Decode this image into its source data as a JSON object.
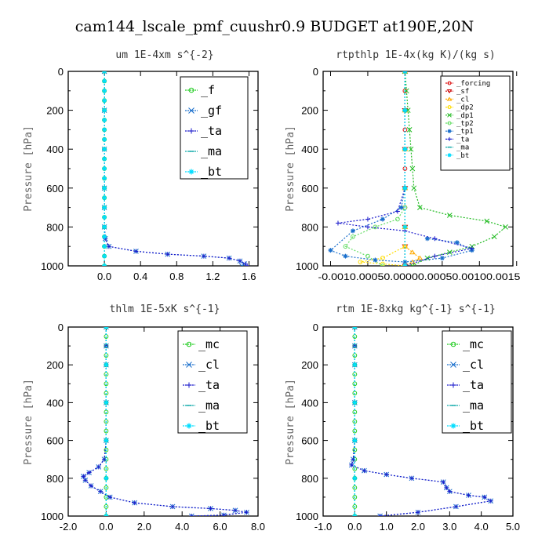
{
  "figure_title": "cam144_lscale_pmf_cuushr0.9  BUDGET at190E,20N",
  "chart_data": [
    {
      "type": "line",
      "title": "um   1E-4xm s^{-2}",
      "ylabel": "Pressure [hPa]",
      "xlabel": "",
      "xlim": [
        -0.4,
        1.7
      ],
      "ylim": [
        1000,
        0
      ],
      "xticks": [
        0.0,
        0.4,
        0.8,
        1.2,
        1.6
      ],
      "xtick_labels": [
        "0.0",
        "0.4",
        "0.8",
        "1.2",
        "1.6"
      ],
      "yticks": [
        0,
        200,
        400,
        600,
        800,
        1000
      ],
      "ytick_labels": [
        "0",
        "200",
        "400",
        "600",
        "800",
        "1000"
      ],
      "legend": "top-right",
      "series": [
        {
          "name": "_f",
          "color": "#22cc22",
          "marker": "o",
          "x": [
            0,
            0,
            0,
            0,
            0,
            0,
            0,
            0,
            0,
            0,
            0,
            0,
            0,
            0,
            0,
            0,
            0,
            0,
            0,
            0,
            0
          ],
          "y": [
            0,
            50,
            100,
            150,
            200,
            250,
            300,
            350,
            400,
            450,
            500,
            550,
            600,
            650,
            700,
            750,
            800,
            850,
            900,
            950,
            1000
          ]
        },
        {
          "name": "_gf",
          "color": "#1a6fcc",
          "marker": "x",
          "x": [
            0,
            0,
            0,
            0,
            0,
            0,
            0.01,
            0.05,
            0.35,
            0.7,
            1.1,
            1.38,
            1.5,
            1.55,
            1.52
          ],
          "y": [
            0,
            200,
            400,
            600,
            700,
            800,
            860,
            900,
            925,
            940,
            950,
            960,
            975,
            990,
            1000
          ]
        },
        {
          "name": "_ta",
          "color": "#1a1acc",
          "marker": "+",
          "x": [
            0,
            0,
            0,
            0,
            0,
            0,
            0.01,
            0.05,
            0.35,
            0.7,
            1.1,
            1.38,
            1.5,
            1.56,
            1.58
          ],
          "y": [
            0,
            200,
            400,
            600,
            700,
            800,
            860,
            900,
            925,
            940,
            950,
            960,
            975,
            990,
            1000
          ]
        },
        {
          "name": "_ma",
          "color": "#11aaaa",
          "marker": "-",
          "x": [
            0,
            0,
            0,
            0,
            0,
            0,
            0
          ],
          "y": [
            0,
            200,
            400,
            600,
            800,
            900,
            1000
          ]
        },
        {
          "name": "_bt",
          "color": "#00ddff",
          "marker": "*",
          "x": [
            0,
            0,
            0,
            0,
            0,
            0,
            0,
            0,
            0,
            0,
            0,
            0,
            0,
            0,
            0,
            0,
            0,
            0,
            0,
            0,
            0
          ],
          "y": [
            0,
            50,
            100,
            150,
            200,
            250,
            300,
            350,
            400,
            450,
            500,
            550,
            600,
            650,
            700,
            750,
            800,
            850,
            900,
            950,
            1000
          ]
        }
      ]
    },
    {
      "type": "line",
      "title": "rtpthlp   1E-4x(kg K)/(kg s)",
      "ylabel": "Pressure [hPa]",
      "xlabel": "",
      "xlim": [
        -0.0011,
        0.00145
      ],
      "ylim": [
        1000,
        0
      ],
      "xticks": [
        -0.001,
        -0.0005,
        0.0,
        0.0005,
        0.001,
        0.0015
      ],
      "xtick_labels": [
        "-0.001",
        "-0.0005",
        "0.0000",
        "0.0005",
        "0.001",
        "0.0015"
      ],
      "xtick_label_combined": "-0.0010.00050.00000.00050.00100.0015",
      "yticks": [
        0,
        200,
        400,
        600,
        800,
        1000
      ],
      "ytick_labels": [
        "0",
        "200",
        "400",
        "600",
        "800",
        "1000"
      ],
      "legend": "top-right",
      "series": [
        {
          "name": "_forcing",
          "color": "#dd1111",
          "marker": "o",
          "x": [
            0,
            0,
            0,
            0,
            0,
            0,
            0,
            0,
            0,
            0,
            0
          ],
          "y": [
            0,
            100,
            200,
            300,
            400,
            500,
            600,
            700,
            800,
            900,
            1000
          ]
        },
        {
          "name": "_sf",
          "color": "#cc0000",
          "marker": "v",
          "x": [
            0,
            0,
            0,
            0,
            0,
            0,
            0
          ],
          "y": [
            0,
            200,
            400,
            600,
            800,
            900,
            1000
          ]
        },
        {
          "name": "_cl",
          "color": "#ffaa00",
          "marker": "^",
          "x": [
            0,
            0,
            0,
            0,
            0,
            0,
            0.0001,
            0.0002,
            0.0001,
            0
          ],
          "y": [
            0,
            200,
            400,
            600,
            800,
            900,
            930,
            960,
            980,
            1000
          ]
        },
        {
          "name": "_dp2",
          "color": "#ffdd00",
          "marker": "o",
          "x": [
            0,
            0,
            0,
            0,
            0,
            0,
            -0.0003,
            -0.0006,
            -0.0003,
            0
          ],
          "y": [
            0,
            200,
            400,
            600,
            800,
            900,
            960,
            980,
            990,
            1000
          ]
        },
        {
          "name": "_dp1",
          "color": "#22bb22",
          "marker": "x",
          "x": [
            0,
            2e-05,
            4e-05,
            6e-05,
            8e-05,
            0.0001,
            0.00012,
            0.0002,
            0.0006,
            0.0011,
            0.00135,
            0.0012,
            0.0009,
            0.0006,
            0.0003,
            0.0001
          ],
          "y": [
            0,
            100,
            200,
            300,
            400,
            500,
            600,
            700,
            740,
            770,
            800,
            850,
            900,
            930,
            960,
            1000
          ]
        },
        {
          "name": "_tp2",
          "color": "#66dd66",
          "marker": "o",
          "x": [
            0,
            0,
            0,
            0,
            0,
            -0.0001,
            -0.0004,
            -0.0007,
            -0.0008,
            -0.0005,
            -0.0003
          ],
          "y": [
            0,
            200,
            400,
            600,
            700,
            760,
            800,
            850,
            900,
            950,
            1000
          ]
        },
        {
          "name": "_tp1",
          "color": "#1a6fcc",
          "marker": "*",
          "x": [
            0,
            0,
            0,
            0,
            -5e-05,
            -0.0003,
            -0.0007,
            -0.001,
            -0.0008,
            -0.0004,
            0,
            0.0005,
            0.0009,
            0.0007,
            0.0003
          ],
          "y": [
            0,
            200,
            400,
            600,
            700,
            760,
            820,
            920,
            950,
            970,
            980,
            960,
            920,
            880,
            860
          ]
        },
        {
          "name": "_ta",
          "color": "#1a1acc",
          "marker": "+",
          "x": [
            0,
            0,
            0,
            0,
            -0.0001,
            -0.0005,
            -0.0009,
            -0.0005,
            0,
            0.0004,
            0.0009,
            0.0004,
            0
          ],
          "y": [
            0,
            200,
            400,
            600,
            720,
            760,
            780,
            800,
            820,
            860,
            910,
            950,
            1000
          ]
        },
        {
          "name": "_ma",
          "color": "#11aaaa",
          "marker": "-",
          "x": [
            0,
            0,
            0,
            0,
            0,
            0
          ],
          "y": [
            0,
            200,
            400,
            600,
            800,
            1000
          ]
        },
        {
          "name": "_bt",
          "color": "#00ddff",
          "marker": "*",
          "x": [
            0,
            0,
            0,
            0,
            0,
            0
          ],
          "y": [
            0,
            200,
            400,
            600,
            800,
            1000
          ]
        }
      ]
    },
    {
      "type": "line",
      "title": "thlm   1E-5xK s^{-1}",
      "ylabel": "Pressure [hPa]",
      "xlabel": "",
      "xlim": [
        -2.0,
        8.0
      ],
      "ylim": [
        1000,
        0
      ],
      "xticks": [
        -2.0,
        0.0,
        2.0,
        4.0,
        6.0,
        8.0
      ],
      "xtick_labels": [
        "-2.0",
        "0.0",
        "2.0",
        "4.0",
        "6.0",
        "8.0"
      ],
      "yticks": [
        0,
        200,
        400,
        600,
        800,
        1000
      ],
      "ytick_labels": [
        "0",
        "200",
        "400",
        "600",
        "800",
        "1000"
      ],
      "legend": "top-right",
      "series": [
        {
          "name": "_mc",
          "color": "#22cc22",
          "marker": "o",
          "x": [
            0,
            0,
            0,
            0,
            0,
            0,
            0,
            0,
            0,
            0,
            0,
            0,
            0,
            0,
            0,
            0,
            0,
            0,
            0,
            0,
            0
          ],
          "y": [
            0,
            50,
            100,
            150,
            200,
            250,
            300,
            350,
            400,
            450,
            500,
            550,
            600,
            650,
            700,
            750,
            800,
            850,
            900,
            950,
            1000
          ]
        },
        {
          "name": "_cl",
          "color": "#1a6fcc",
          "marker": "x",
          "x": [
            0,
            0,
            0,
            0,
            0,
            -0.1,
            -0.4,
            -0.9,
            -1.2,
            -1.1,
            -0.8,
            -0.3,
            0.2,
            1.5,
            3.5,
            5.5,
            6.8,
            7.4,
            6.2,
            4.5
          ],
          "y": [
            0,
            100,
            200,
            400,
            600,
            700,
            740,
            770,
            790,
            810,
            840,
            870,
            900,
            930,
            950,
            960,
            970,
            980,
            995,
            1000
          ]
        },
        {
          "name": "_ta",
          "color": "#1a1acc",
          "marker": "+",
          "x": [
            0,
            0,
            0,
            0,
            0,
            -0.1,
            -0.4,
            -0.9,
            -1.2,
            -1.1,
            -0.8,
            -0.3,
            0.2,
            1.5,
            3.5,
            5.5,
            6.8,
            7.4,
            6.2,
            4.5
          ],
          "y": [
            0,
            100,
            200,
            400,
            600,
            700,
            740,
            770,
            790,
            810,
            840,
            870,
            900,
            930,
            950,
            960,
            970,
            980,
            995,
            1000
          ]
        },
        {
          "name": "_ma",
          "color": "#11aaaa",
          "marker": "-",
          "x": [
            0,
            0,
            0,
            0,
            0,
            0
          ],
          "y": [
            0,
            200,
            400,
            600,
            800,
            1000
          ]
        },
        {
          "name": "_bt",
          "color": "#00ddff",
          "marker": "*",
          "x": [
            0,
            0,
            0,
            0,
            0,
            0
          ],
          "y": [
            0,
            200,
            400,
            600,
            800,
            1000
          ]
        }
      ]
    },
    {
      "type": "line",
      "title": "rtm   1E-8xkg kg^{-1} s^{-1}",
      "ylabel": "Pressure [hPa]",
      "xlabel": "",
      "xlim": [
        -1.0,
        5.0
      ],
      "ylim": [
        1000,
        0
      ],
      "xticks": [
        -1.0,
        0.0,
        1.0,
        2.0,
        3.0,
        4.0,
        5.0
      ],
      "xtick_labels": [
        "-1.0",
        "0.0",
        "1.0",
        "2.0",
        "3.0",
        "4.0",
        "5.0"
      ],
      "yticks": [
        0,
        200,
        400,
        600,
        800,
        1000
      ],
      "ytick_labels": [
        "0",
        "200",
        "400",
        "600",
        "800",
        "1000"
      ],
      "legend": "top-right",
      "series": [
        {
          "name": "_mc",
          "color": "#22cc22",
          "marker": "o",
          "x": [
            0,
            0,
            0,
            0,
            0,
            0,
            0,
            0,
            0,
            0,
            0,
            0,
            0,
            0,
            0,
            0,
            0,
            0,
            0,
            0,
            0
          ],
          "y": [
            0,
            50,
            100,
            150,
            200,
            250,
            300,
            350,
            400,
            450,
            500,
            550,
            600,
            650,
            700,
            750,
            800,
            850,
            900,
            950,
            1000
          ]
        },
        {
          "name": "_cl",
          "color": "#1a6fcc",
          "marker": "x",
          "x": [
            0,
            0,
            0,
            0,
            0,
            -0.05,
            -0.1,
            0.3,
            1.0,
            1.8,
            2.8,
            2.9,
            3.0,
            3.6,
            4.1,
            4.3,
            3.2,
            2.0,
            0.8
          ],
          "y": [
            0,
            100,
            200,
            400,
            600,
            700,
            730,
            760,
            780,
            800,
            820,
            850,
            870,
            890,
            900,
            920,
            950,
            980,
            1000
          ]
        },
        {
          "name": "_ta",
          "color": "#1a1acc",
          "marker": "+",
          "x": [
            0,
            0,
            0,
            0,
            0,
            -0.05,
            -0.1,
            0.3,
            1.0,
            1.8,
            2.8,
            2.9,
            3.0,
            3.6,
            4.1,
            4.3,
            3.2,
            2.0,
            0.8
          ],
          "y": [
            0,
            100,
            200,
            400,
            600,
            700,
            730,
            760,
            780,
            800,
            820,
            850,
            870,
            890,
            900,
            920,
            950,
            980,
            1000
          ]
        },
        {
          "name": "_ma",
          "color": "#11aaaa",
          "marker": "-",
          "x": [
            0,
            0,
            0,
            0,
            0,
            0
          ],
          "y": [
            0,
            200,
            400,
            600,
            800,
            1000
          ]
        },
        {
          "name": "_bt",
          "color": "#00ddff",
          "marker": "*",
          "x": [
            0,
            0,
            0,
            0,
            0,
            0
          ],
          "y": [
            0,
            200,
            400,
            600,
            800,
            1000
          ]
        }
      ]
    }
  ]
}
